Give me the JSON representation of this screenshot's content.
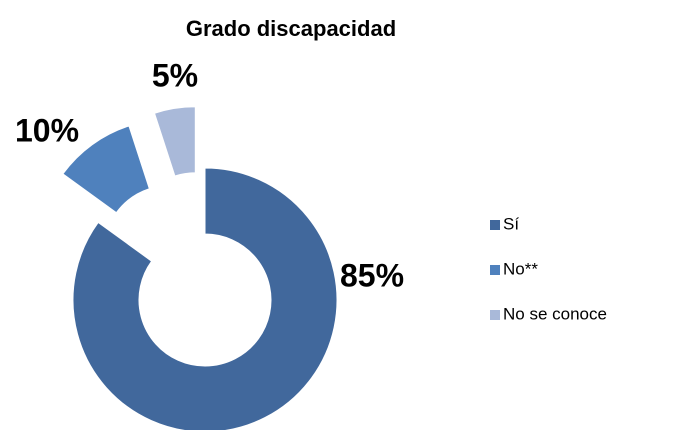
{
  "chart_data": {
    "type": "donut",
    "title": "Grado discapacidad",
    "categories": [
      "Sí",
      "No**",
      "No se conoce"
    ],
    "values": [
      85,
      10,
      5
    ],
    "value_labels": [
      "85%",
      "10%",
      "5%"
    ],
    "colors": [
      "#41689c",
      "#4f81bd",
      "#a9b9d9"
    ],
    "legend": "right"
  }
}
